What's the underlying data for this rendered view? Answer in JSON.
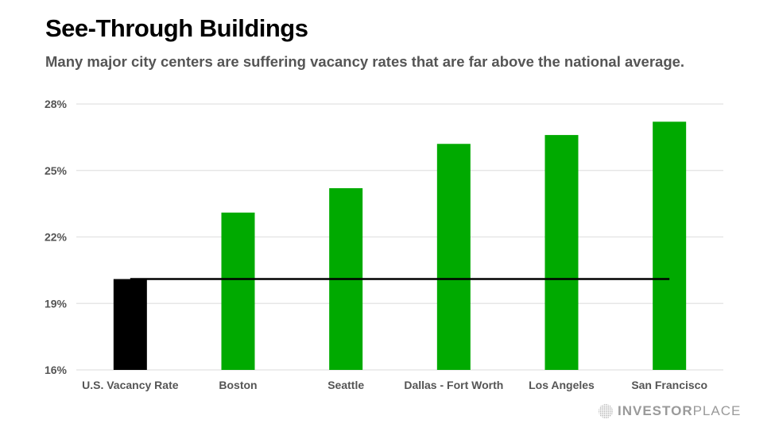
{
  "header": {
    "title": "See-Through Buildings",
    "subtitle": "Many major city centers are suffering vacancy rates that are far above the national average."
  },
  "branding": {
    "logo_bold": "INVESTOR",
    "logo_light": "PLACE"
  },
  "colors": {
    "highlight_bar": "#000000",
    "city_bar": "#00aa00",
    "reference_line": "#000000",
    "grid": "#e2e2e2"
  },
  "chart_data": {
    "type": "bar",
    "title": "See-Through Buildings",
    "subtitle": "Many major city centers are suffering vacancy rates that are far above the national average.",
    "xlabel": "",
    "ylabel": "",
    "categories": [
      "U.S. Vacancy Rate",
      "Boston",
      "Seattle",
      "Dallas - Fort Worth",
      "Los Angeles",
      "San Francisco"
    ],
    "values": [
      20.1,
      23.1,
      24.2,
      26.2,
      26.6,
      27.2
    ],
    "bar_colors": [
      "#000000",
      "#00aa00",
      "#00aa00",
      "#00aa00",
      "#00aa00",
      "#00aa00"
    ],
    "reference_line": {
      "label": "U.S. Vacancy Rate",
      "value": 20.1
    },
    "ylim": [
      16,
      28
    ],
    "yticks": [
      16,
      19,
      22,
      25,
      28
    ],
    "ytick_labels": [
      "16%",
      "19%",
      "22%",
      "25%",
      "28%"
    ],
    "grid": true,
    "legend": "none"
  }
}
